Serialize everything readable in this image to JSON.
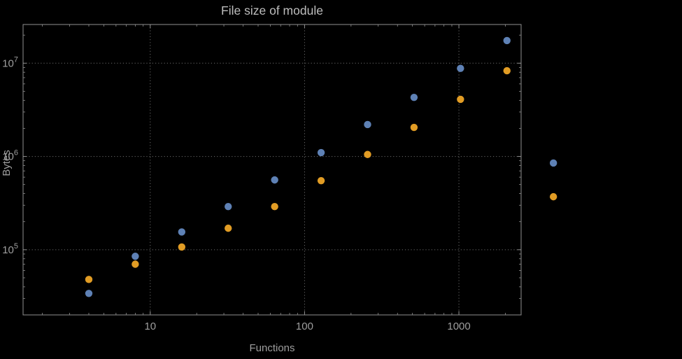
{
  "chart_data": {
    "type": "scatter",
    "title": "File size of module",
    "xlabel": "Functions",
    "ylabel": "Bytes",
    "x_scale": "log",
    "y_scale": "log",
    "xlim": [
      1.5,
      2530
    ],
    "ylim": [
      20000,
      26000000
    ],
    "x_ticks": [
      10,
      100,
      1000
    ],
    "y_tick_exponents": [
      5,
      6,
      7
    ],
    "grid": true,
    "legend": "none",
    "x": [
      4,
      8,
      16,
      32,
      64,
      128,
      256,
      512,
      1024,
      2048,
      4096
    ],
    "series": [
      {
        "name": "blue",
        "color": "#5e81b5",
        "values": [
          34000,
          85000,
          155000,
          290000,
          560000,
          1100000,
          2200000,
          4300000,
          8800000,
          17500000,
          850000
        ]
      },
      {
        "name": "orange",
        "color": "#e19c24",
        "values": [
          48000,
          70000,
          107000,
          170000,
          290000,
          550000,
          1050000,
          2050000,
          4100000,
          8300000,
          370000
        ]
      }
    ],
    "colors": {
      "background": "#000000",
      "frame": "#909090",
      "grid": "#6b6b6b",
      "tick_text": "#9e9e9e",
      "title_text": "#bdbdbd"
    }
  }
}
